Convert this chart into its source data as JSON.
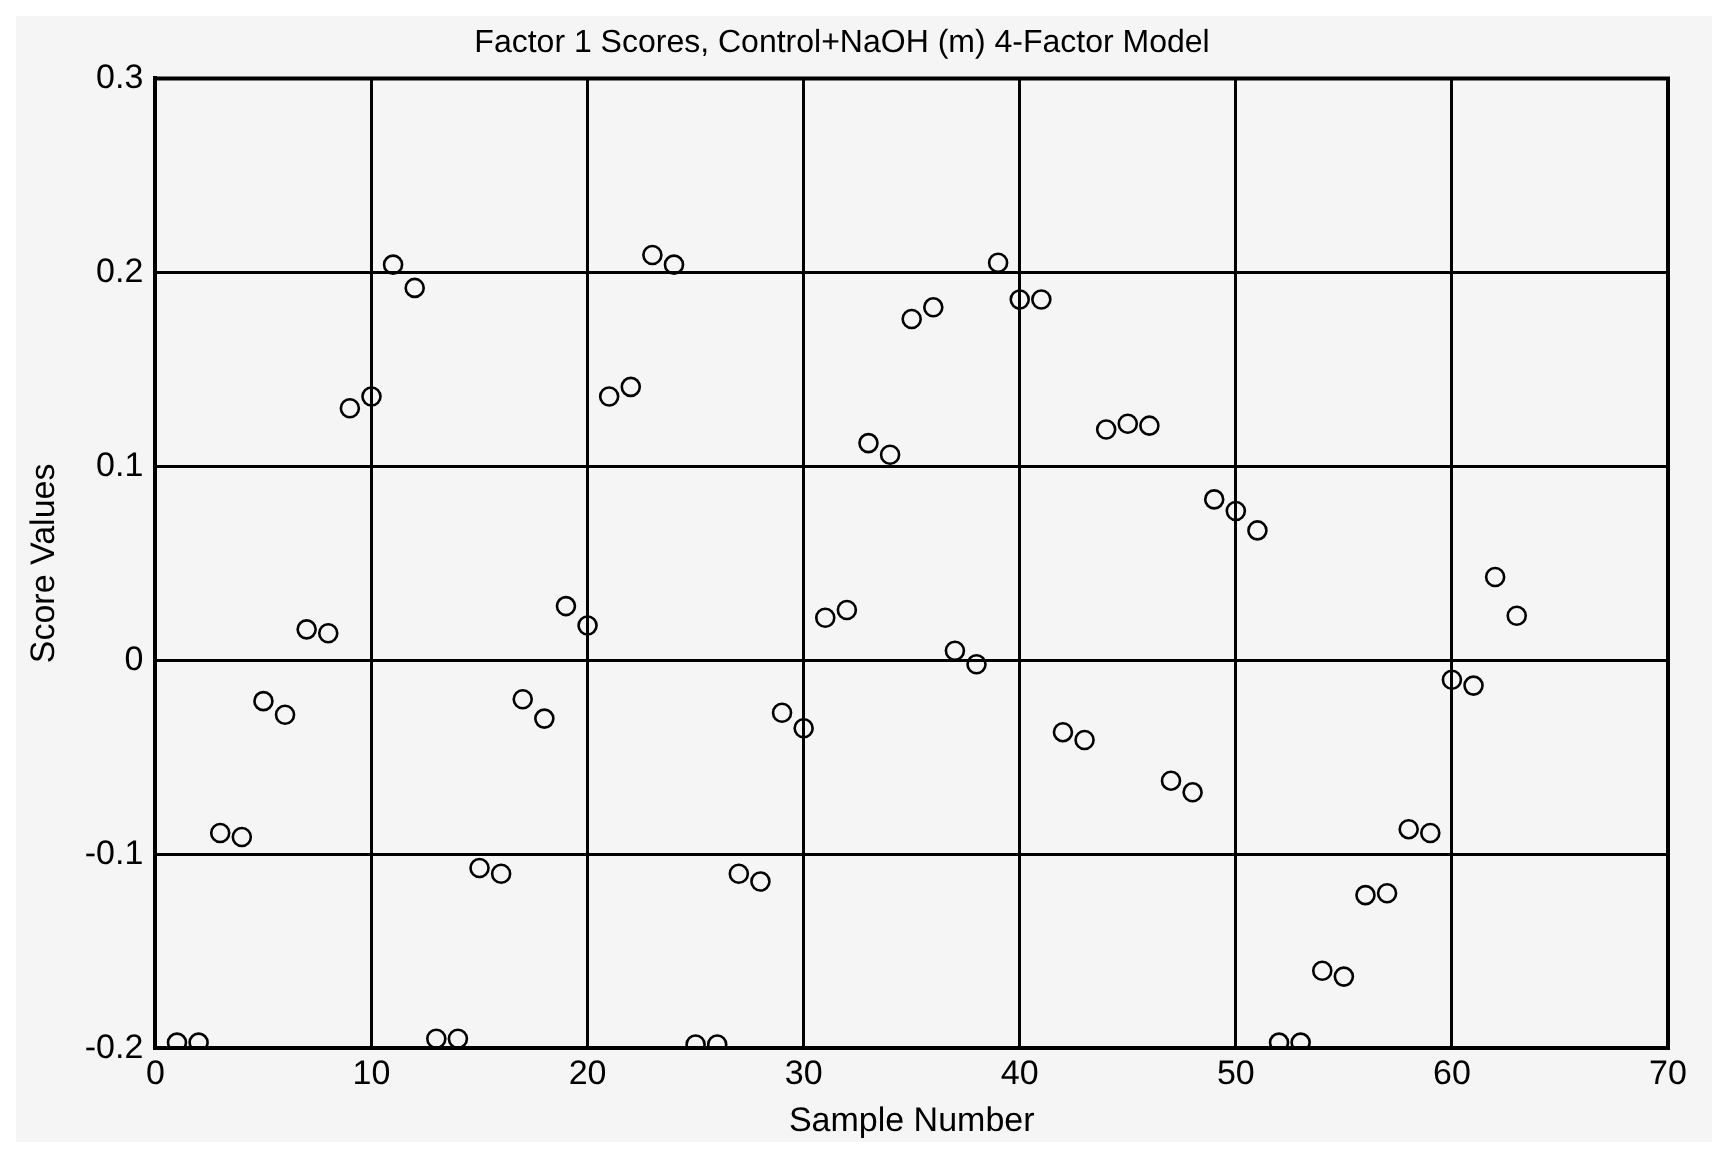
{
  "chart_data": {
    "type": "scatter",
    "title": "Factor 1 Scores, Control+NaOH (m) 4-Factor Model",
    "xlabel": "Sample Number",
    "ylabel": "Score Values",
    "x": [
      1,
      2,
      3,
      4,
      5,
      6,
      7,
      8,
      9,
      10,
      11,
      12,
      13,
      14,
      15,
      16,
      17,
      18,
      19,
      20,
      21,
      22,
      23,
      24,
      25,
      26,
      27,
      28,
      29,
      30,
      31,
      32,
      33,
      34,
      35,
      36,
      37,
      38,
      39,
      40,
      41,
      42,
      43,
      44,
      45,
      46,
      47,
      48,
      49,
      50,
      51,
      52,
      53,
      54,
      55,
      56,
      57,
      58,
      59,
      60,
      61,
      62,
      63
    ],
    "series": [
      {
        "color": "#000000",
        "values": [
          -0.197,
          -0.197,
          -0.089,
          -0.091,
          -0.021,
          -0.028,
          0.016,
          0.014,
          0.13,
          0.136,
          0.204,
          0.192,
          -0.195,
          -0.195,
          -0.107,
          -0.11,
          -0.02,
          -0.03,
          0.028,
          0.018,
          0.136,
          0.141,
          0.209,
          0.204,
          -0.198,
          -0.198,
          -0.11,
          -0.114,
          -0.027,
          -0.035,
          0.022,
          0.026,
          0.112,
          0.106,
          0.176,
          0.182,
          0.005,
          -0.002,
          0.205,
          0.186,
          0.186,
          -0.037,
          -0.041,
          0.119,
          0.122,
          0.121,
          -0.062,
          -0.068,
          0.083,
          0.077,
          0.067,
          -0.197,
          -0.197,
          -0.16,
          -0.163,
          -0.121,
          -0.12,
          -0.087,
          -0.089,
          -0.01,
          -0.013,
          0.043,
          0.023
        ]
      }
    ],
    "xlim": [
      0,
      70
    ],
    "xticks": [
      0,
      10,
      20,
      30,
      40,
      50,
      60,
      70
    ],
    "ylim": [
      -0.2,
      0.3
    ],
    "yticks": [
      -0.2,
      -0.1,
      0,
      0.1,
      0.2,
      0.3
    ],
    "grid": true,
    "legend": false,
    "marker": "circle"
  }
}
